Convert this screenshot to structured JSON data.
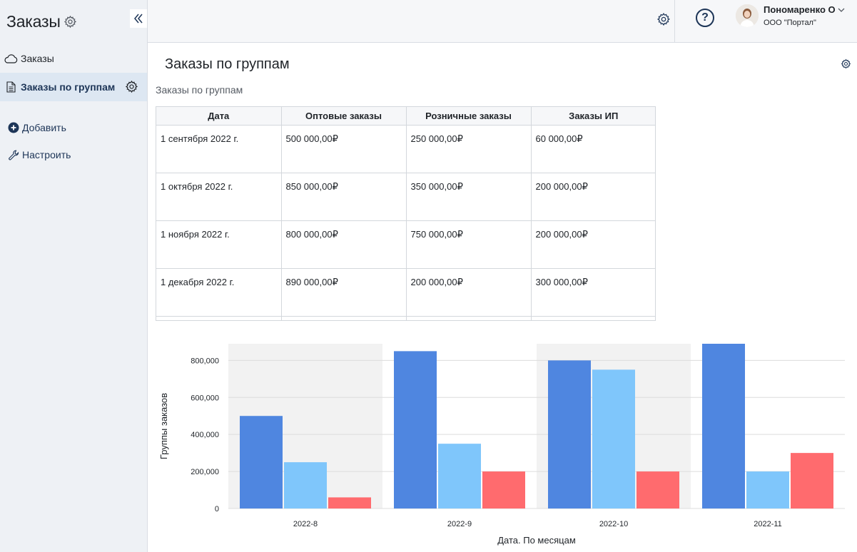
{
  "sidebar": {
    "title": "Заказы",
    "items": [
      {
        "label": "Заказы",
        "icon": "cloud-icon"
      },
      {
        "label": "Заказы по группам",
        "icon": "document-icon"
      }
    ],
    "actions": [
      {
        "label": "Добавить",
        "icon": "plus-circle-icon"
      },
      {
        "label": "Настроить",
        "icon": "wrench-icon"
      }
    ]
  },
  "header": {
    "user_name": "Пономаренко О",
    "user_org": "ООО \"Портал\"",
    "help_symbol": "?"
  },
  "main": {
    "page_title": "Заказы по группам",
    "widget_title": "Заказы по группам"
  },
  "table": {
    "headers": [
      "Дата",
      "Оптовые заказы",
      "Розничные заказы",
      "Заказы ИП"
    ],
    "rows": [
      [
        "1 сентября 2022 г.",
        "500 000,00₽",
        "250 000,00₽",
        "60 000,00₽"
      ],
      [
        "1 октября 2022 г.",
        "850 000,00₽",
        "350 000,00₽",
        "200 000,00₽"
      ],
      [
        "1 ноября 2022 г.",
        "800 000,00₽",
        "750 000,00₽",
        "200 000,00₽"
      ],
      [
        "1 декабря 2022 г.",
        "890 000,00₽",
        "200 000,00₽",
        "300 000,00₽"
      ]
    ]
  },
  "chart_data": {
    "type": "bar",
    "categories": [
      "2022-8",
      "2022-9",
      "2022-10",
      "2022-11"
    ],
    "series": [
      {
        "values": [
          500000,
          850000,
          800000,
          890000
        ],
        "color": "#4f86e0"
      },
      {
        "values": [
          250000,
          350000,
          750000,
          200000
        ],
        "color": "#7fc6fb"
      },
      {
        "values": [
          60000,
          200000,
          200000,
          300000
        ],
        "color": "#ff6b6e"
      }
    ],
    "yticks": [
      0,
      200000,
      400000,
      600000,
      800000
    ],
    "ytick_labels": [
      "0",
      "200,000",
      "400,000",
      "600,000",
      "800,000"
    ],
    "ylim": [
      0,
      890000
    ],
    "xlabel": "Дата. По месяцам",
    "ylabel": "Группы заказов",
    "grid": true,
    "band_color": "#f2f2f2"
  }
}
